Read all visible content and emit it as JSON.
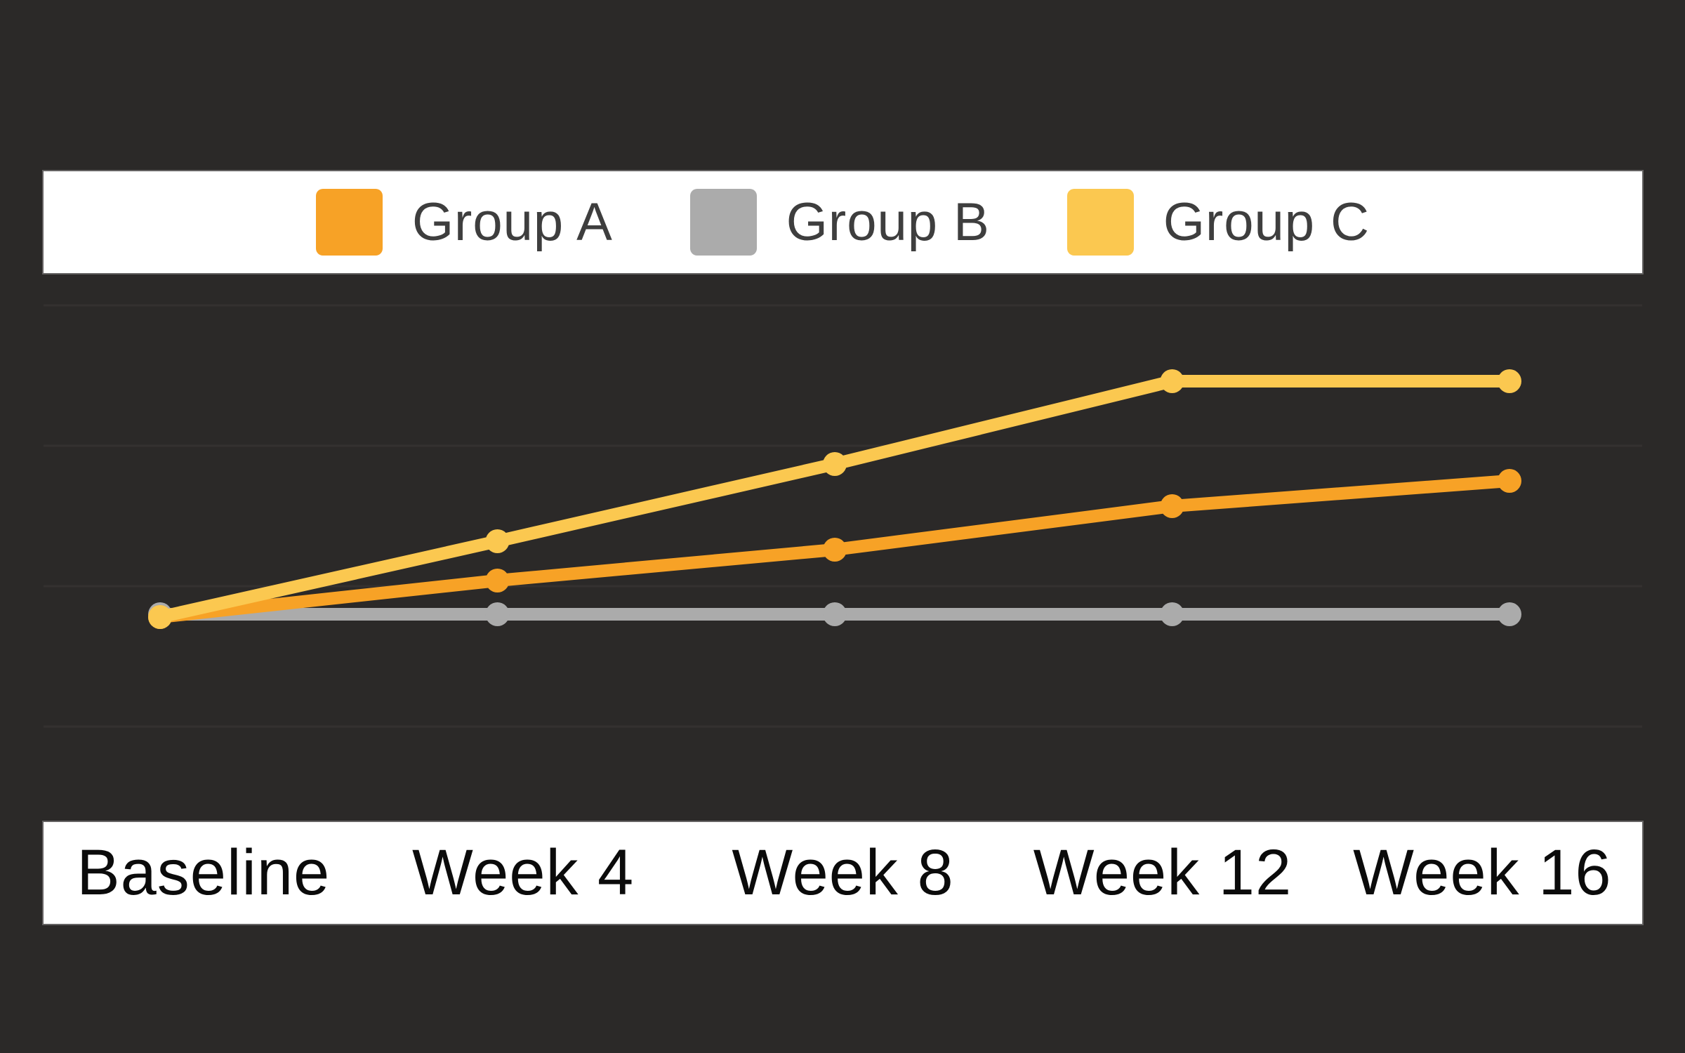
{
  "page": {
    "background_color": "#2B2928",
    "panel_color": "#FFFFFF",
    "gridline_color": "#343130",
    "legend_text_color": "#3E3E3E",
    "axis_text_color": "#0B0B0B"
  },
  "chart_data": {
    "type": "line",
    "title": "",
    "xlabel": "",
    "ylabel": "",
    "categories": [
      "Baseline",
      "Week 4",
      "Week 8",
      "Week 12",
      "Week 16"
    ],
    "series": [
      {
        "name": "Group A",
        "color": "#F7A226",
        "values": [
          0.78,
          1.04,
          1.26,
          1.57,
          1.75
        ]
      },
      {
        "name": "Group B",
        "color": "#ABABAB",
        "values": [
          0.8,
          0.8,
          0.8,
          0.8,
          0.8
        ]
      },
      {
        "name": "Group C",
        "color": "#FBC850",
        "values": [
          0.78,
          1.32,
          1.87,
          2.46,
          2.46
        ]
      }
    ],
    "y_axis": {
      "visible": false,
      "unit": "gridline units (axis unlabeled)",
      "gridlines_at": [
        0,
        1,
        2,
        3
      ],
      "ylim": [
        -0.7,
        3.2
      ]
    },
    "grid": "horizontal",
    "legend_position": "top",
    "markers": "circle on every data point"
  }
}
